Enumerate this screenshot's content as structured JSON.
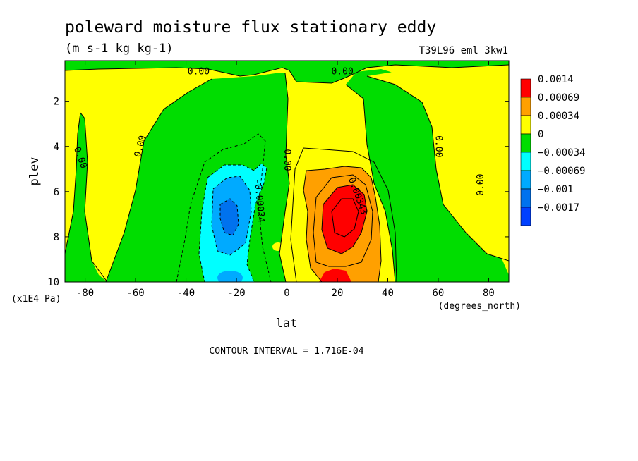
{
  "chart_data": {
    "type": "heatmap",
    "title": "poleward moisture flux stationary eddy",
    "units": "(m s-1 kg kg-1)",
    "run_label": "T39L96_eml_3kw1",
    "xlabel": "lat",
    "ylabel": "plev",
    "x_units": "(degrees_north)",
    "y_units": "(x1E4 Pa)",
    "xlim": [
      -88,
      88
    ],
    "ylim": [
      0.2,
      10
    ],
    "y_inverted": true,
    "x_ticks": [
      -80,
      -60,
      -40,
      -20,
      0,
      20,
      40,
      60,
      80
    ],
    "x_tick_labels": [
      "-80",
      "-60",
      "-40",
      "-20",
      "0",
      "20",
      "40",
      "60",
      "80"
    ],
    "y_ticks": [
      2,
      4,
      6,
      8,
      10
    ],
    "y_tick_labels": [
      "2",
      "4",
      "6",
      "8",
      "10"
    ],
    "contour_interval_text": "CONTOUR INTERVAL = 1.716E-04",
    "legend": {
      "placement": "right",
      "entries": [
        {
          "label": "0.0014",
          "color": "#ff0000"
        },
        {
          "label": "0.00069",
          "color": "#ffa000"
        },
        {
          "label": "0.00034",
          "color": "#ffff00"
        },
        {
          "label": "0",
          "color": "#00dd00"
        },
        {
          "label": "−0.00034",
          "color": "#00ffff"
        },
        {
          "label": "−0.00069",
          "color": "#00aaff"
        },
        {
          "label": "−0.001",
          "color": "#0072ee"
        },
        {
          "label": "−0.0017",
          "color": "#0040ff"
        }
      ]
    },
    "contour_labels": [
      {
        "text": "0.00",
        "lat": -35,
        "plev": 0.7,
        "angle": 0
      },
      {
        "text": "0.00",
        "lat": 22,
        "plev": 0.7,
        "angle": 0
      },
      {
        "text": "0.00",
        "lat": -82,
        "plev": 4.5,
        "angle": 70
      },
      {
        "text": "0.00",
        "lat": -58,
        "plev": 4.0,
        "angle": -75
      },
      {
        "text": "0.00",
        "lat": 0,
        "plev": 4.6,
        "angle": 90
      },
      {
        "text": "0.00",
        "lat": 60,
        "plev": 4.0,
        "angle": 90
      },
      {
        "text": "0.00",
        "lat": 77,
        "plev": 5.7,
        "angle": -90
      },
      {
        "text": "-0.00034",
        "lat": -11,
        "plev": 6.4,
        "angle": 85
      },
      {
        "text": "0.00343",
        "lat": 28,
        "plev": 6.2,
        "angle": 70
      }
    ],
    "regions": [
      {
        "category": "positive_0_to_0.00034",
        "color": "#ffff00",
        "description": "extratropical and subtropical positive flux bands (most of the domain)"
      },
      {
        "category": "negative_0_to_-0.00034",
        "color": "#00dd00",
        "description": "near-zero/negative band along 0 contours, high latitudes and top levels"
      },
      {
        "category": "negative_-0.00034_to_-0.00069",
        "color": "#00ffff",
        "lat_center": -22,
        "plev_center": 7.5
      },
      {
        "category": "negative_-0.00069_to_-0.001",
        "color": "#00aaff",
        "lat_center": -22,
        "plev_center": 7.3
      },
      {
        "category": "negative_<-0.001",
        "color": "#0072ee",
        "lat_center": -23,
        "plev_center": 7.1
      },
      {
        "category": "positive_0.00034_to_0.00069",
        "color": "#ffa000",
        "lat_center": 24,
        "plev_center": 7.6
      },
      {
        "category": "positive_>0.00069",
        "color": "#ff0000",
        "lat_center": 24,
        "plev_center": 7.4
      }
    ]
  }
}
